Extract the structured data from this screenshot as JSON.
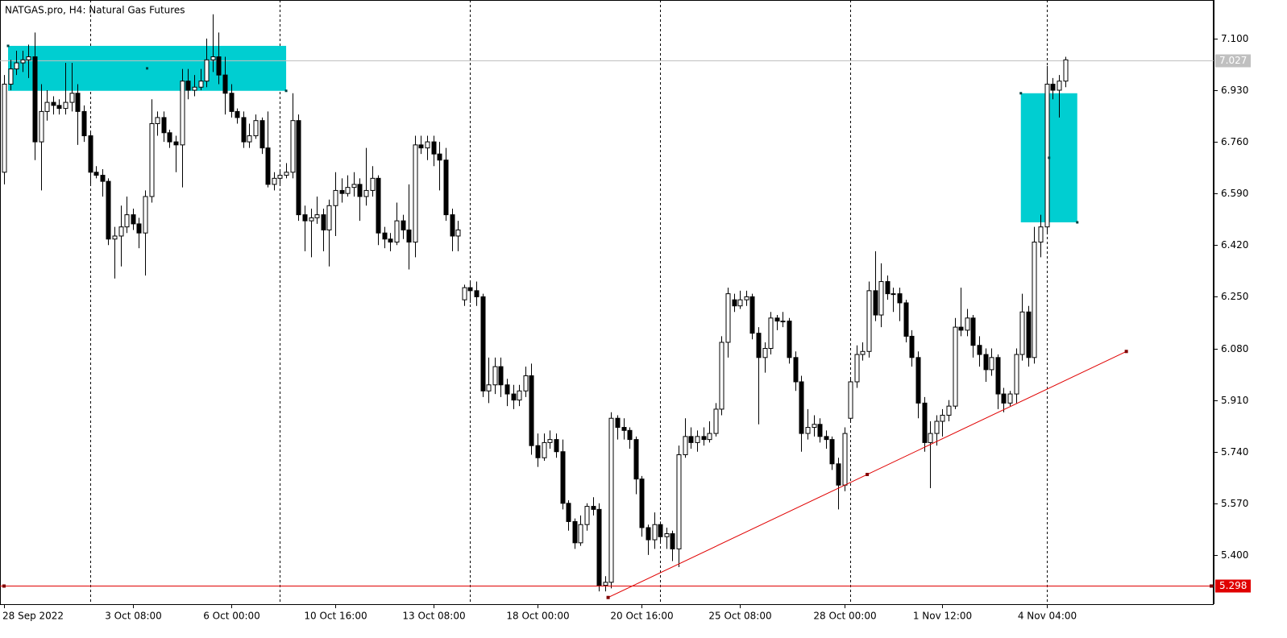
{
  "chart_data": {
    "type": "candlestick",
    "title": "NATGAS.pro, H4:  Natural Gas Futures",
    "ylim": [
      5.238,
      7.227
    ],
    "yticks": [
      {
        "value": 7.1,
        "label": "7.100"
      },
      {
        "value": 6.93,
        "label": "6.930"
      },
      {
        "value": 6.76,
        "label": "6.760"
      },
      {
        "value": 6.59,
        "label": "6.590"
      },
      {
        "value": 6.42,
        "label": "6.420"
      },
      {
        "value": 6.25,
        "label": "6.250"
      },
      {
        "value": 6.08,
        "label": "6.080"
      },
      {
        "value": 5.91,
        "label": "5.910"
      },
      {
        "value": 5.74,
        "label": "5.740"
      },
      {
        "value": 5.57,
        "label": "5.570"
      },
      {
        "value": 5.4,
        "label": "5.400"
      }
    ],
    "categories": [
      "28 Sep 2022",
      null,
      null,
      null,
      null,
      null,
      null,
      null,
      null,
      null,
      null,
      null,
      null,
      null,
      null,
      null,
      null,
      null,
      null,
      null,
      null,
      "3 Oct 08:00",
      null,
      null,
      null,
      null,
      null,
      null,
      null,
      null,
      null,
      null,
      null,
      null,
      null,
      null,
      null,
      "6 Oct 00:00",
      null,
      null,
      null,
      null,
      null,
      null,
      null,
      null,
      null,
      null,
      null,
      null,
      null,
      null,
      null,
      null,
      "10 Oct 16:00",
      null,
      null,
      null,
      null,
      null,
      null,
      null,
      null,
      null,
      null,
      null,
      null,
      null,
      null,
      null,
      "13 Oct 08:00",
      null,
      null,
      null,
      null,
      null,
      null,
      null,
      null,
      null,
      null,
      null,
      null,
      null,
      null,
      null,
      null,
      "18 Oct 00:00",
      null,
      null,
      null,
      null,
      null,
      null,
      null,
      null,
      null,
      null,
      null,
      null,
      null,
      null,
      null,
      null,
      "20 Oct 16:00",
      null,
      null,
      null,
      null,
      null,
      null,
      null,
      null,
      null,
      null,
      null,
      null,
      null,
      null,
      null,
      "25 Oct 08:00",
      null,
      null,
      null,
      null,
      null,
      null,
      null,
      null,
      null,
      null,
      null,
      null,
      null,
      null,
      null,
      null,
      "28 Oct 00:00",
      null,
      null,
      null,
      null,
      null,
      null,
      null,
      null,
      null,
      null,
      null,
      null,
      null,
      null,
      null,
      "1 Nov 12:00",
      null,
      null,
      null,
      null,
      null,
      null,
      null,
      null,
      null,
      null,
      null,
      null,
      null,
      null,
      null,
      null,
      "4 Nov 04:00",
      null,
      null,
      null
    ],
    "candles": [
      [
        6.66,
        6.98,
        6.62,
        6.95
      ],
      [
        6.95,
        7.03,
        6.93,
        7.0
      ],
      [
        7.0,
        7.06,
        6.98,
        7.02
      ],
      [
        7.02,
        7.06,
        6.99,
        7.03
      ],
      [
        7.03,
        7.08,
        6.97,
        7.04
      ],
      [
        7.04,
        7.12,
        6.7,
        6.76
      ],
      [
        6.76,
        6.95,
        6.6,
        6.86
      ],
      [
        6.86,
        6.93,
        6.83,
        6.89
      ],
      [
        6.89,
        6.91,
        6.85,
        6.88
      ],
      [
        6.88,
        6.9,
        6.85,
        6.87
      ],
      [
        6.87,
        7.02,
        6.85,
        6.89
      ],
      [
        6.89,
        7.02,
        6.86,
        6.92
      ],
      [
        6.92,
        6.95,
        6.75,
        6.86
      ],
      [
        6.86,
        6.88,
        6.76,
        6.78
      ],
      [
        6.78,
        6.79,
        6.62,
        6.66
      ],
      [
        6.66,
        6.68,
        6.64,
        6.65
      ],
      [
        6.65,
        6.67,
        6.58,
        6.63
      ],
      [
        6.63,
        6.64,
        6.42,
        6.44
      ],
      [
        6.44,
        6.48,
        6.31,
        6.45
      ],
      [
        6.45,
        6.55,
        6.35,
        6.48
      ],
      [
        6.48,
        6.58,
        6.46,
        6.52
      ],
      [
        6.52,
        6.54,
        6.47,
        6.49
      ],
      [
        6.49,
        6.51,
        6.41,
        6.46
      ],
      [
        6.46,
        6.6,
        6.32,
        6.58
      ],
      [
        6.58,
        6.9,
        6.56,
        6.82
      ],
      [
        6.82,
        6.86,
        6.78,
        6.84
      ],
      [
        6.84,
        6.86,
        6.76,
        6.79
      ],
      [
        6.79,
        6.8,
        6.74,
        6.76
      ],
      [
        6.76,
        6.78,
        6.66,
        6.75
      ],
      [
        6.75,
        7.0,
        6.61,
        6.96
      ],
      [
        6.96,
        7.0,
        6.9,
        6.93
      ],
      [
        6.93,
        6.98,
        6.91,
        6.94
      ],
      [
        6.94,
        7.0,
        6.93,
        6.96
      ],
      [
        6.96,
        7.1,
        6.94,
        7.03
      ],
      [
        7.03,
        7.18,
        6.99,
        7.04
      ],
      [
        7.04,
        7.12,
        6.95,
        6.98
      ],
      [
        6.98,
        7.04,
        6.85,
        6.92
      ],
      [
        6.92,
        6.95,
        6.84,
        6.86
      ],
      [
        6.86,
        6.87,
        6.82,
        6.84
      ],
      [
        6.84,
        6.86,
        6.74,
        6.76
      ],
      [
        6.76,
        6.82,
        6.74,
        6.78
      ],
      [
        6.78,
        6.85,
        6.77,
        6.83
      ],
      [
        6.83,
        6.84,
        6.72,
        6.74
      ],
      [
        6.74,
        6.86,
        6.61,
        6.62
      ],
      [
        6.62,
        6.66,
        6.6,
        6.64
      ],
      [
        6.64,
        6.67,
        6.62,
        6.65
      ],
      [
        6.65,
        6.69,
        6.64,
        6.66
      ],
      [
        6.66,
        6.92,
        6.64,
        6.83
      ],
      [
        6.83,
        6.85,
        6.5,
        6.52
      ],
      [
        6.52,
        6.55,
        6.4,
        6.5
      ],
      [
        6.5,
        6.54,
        6.38,
        6.51
      ],
      [
        6.51,
        6.58,
        6.49,
        6.52
      ],
      [
        6.52,
        6.54,
        6.4,
        6.47
      ],
      [
        6.47,
        6.57,
        6.35,
        6.55
      ],
      [
        6.55,
        6.66,
        6.45,
        6.6
      ],
      [
        6.6,
        6.64,
        6.56,
        6.59
      ],
      [
        6.59,
        6.65,
        6.58,
        6.61
      ],
      [
        6.61,
        6.66,
        6.58,
        6.62
      ],
      [
        6.62,
        6.64,
        6.5,
        6.58
      ],
      [
        6.58,
        6.74,
        6.55,
        6.6
      ],
      [
        6.6,
        6.68,
        6.58,
        6.64
      ],
      [
        6.64,
        6.65,
        6.42,
        6.46
      ],
      [
        6.46,
        6.48,
        6.41,
        6.44
      ],
      [
        6.44,
        6.46,
        6.4,
        6.43
      ],
      [
        6.43,
        6.56,
        6.42,
        6.5
      ],
      [
        6.5,
        6.52,
        6.44,
        6.47
      ],
      [
        6.47,
        6.62,
        6.34,
        6.43
      ],
      [
        6.43,
        6.78,
        6.38,
        6.75
      ],
      [
        6.75,
        6.78,
        6.72,
        6.74
      ],
      [
        6.74,
        6.78,
        6.7,
        6.76
      ],
      [
        6.76,
        6.78,
        6.68,
        6.72
      ],
      [
        6.72,
        6.76,
        6.6,
        6.7
      ],
      [
        6.7,
        6.74,
        6.5,
        6.52
      ],
      [
        6.52,
        6.54,
        6.4,
        6.45
      ],
      [
        6.45,
        6.5,
        6.4,
        6.47
      ],
      [
        6.24,
        6.29,
        6.22,
        6.28
      ],
      [
        6.28,
        6.3,
        6.23,
        6.27
      ],
      [
        6.27,
        6.3,
        6.22,
        6.25
      ],
      [
        6.25,
        6.26,
        5.92,
        5.94
      ],
      [
        5.94,
        6.05,
        5.9,
        5.96
      ],
      [
        5.96,
        6.05,
        5.93,
        6.02
      ],
      [
        6.02,
        6.05,
        5.92,
        5.96
      ],
      [
        5.96,
        5.98,
        5.89,
        5.93
      ],
      [
        5.93,
        5.96,
        5.88,
        5.91
      ],
      [
        5.91,
        5.96,
        5.89,
        5.94
      ],
      [
        5.94,
        6.02,
        5.92,
        5.99
      ],
      [
        5.99,
        6.03,
        5.73,
        5.76
      ],
      [
        5.76,
        5.8,
        5.69,
        5.72
      ],
      [
        5.72,
        5.8,
        5.71,
        5.77
      ],
      [
        5.77,
        5.81,
        5.75,
        5.78
      ],
      [
        5.78,
        5.8,
        5.72,
        5.74
      ],
      [
        5.74,
        5.78,
        5.55,
        5.57
      ],
      [
        5.57,
        5.58,
        5.48,
        5.51
      ],
      [
        5.51,
        5.52,
        5.42,
        5.44
      ],
      [
        5.44,
        5.53,
        5.43,
        5.5
      ],
      [
        5.5,
        5.57,
        5.48,
        5.56
      ],
      [
        5.56,
        5.59,
        5.53,
        5.55
      ],
      [
        5.55,
        5.57,
        5.28,
        5.3
      ],
      [
        5.3,
        5.33,
        5.28,
        5.31
      ],
      [
        5.31,
        5.87,
        5.29,
        5.85
      ],
      [
        5.85,
        5.86,
        5.78,
        5.82
      ],
      [
        5.82,
        5.85,
        5.78,
        5.81
      ],
      [
        5.81,
        5.82,
        5.75,
        5.78
      ],
      [
        5.78,
        5.79,
        5.6,
        5.65
      ],
      [
        5.65,
        5.66,
        5.46,
        5.49
      ],
      [
        5.49,
        5.5,
        5.4,
        5.45
      ],
      [
        5.45,
        5.54,
        5.42,
        5.5
      ],
      [
        5.5,
        5.51,
        5.44,
        5.46
      ],
      [
        5.46,
        5.49,
        5.42,
        5.47
      ],
      [
        5.47,
        5.48,
        5.38,
        5.42
      ],
      [
        5.42,
        5.76,
        5.36,
        5.73
      ],
      [
        5.73,
        5.85,
        5.72,
        5.79
      ],
      [
        5.79,
        5.82,
        5.75,
        5.77
      ],
      [
        5.77,
        5.81,
        5.74,
        5.79
      ],
      [
        5.79,
        5.82,
        5.76,
        5.78
      ],
      [
        5.78,
        5.84,
        5.77,
        5.8
      ],
      [
        5.8,
        5.9,
        5.79,
        5.88
      ],
      [
        5.88,
        6.12,
        5.86,
        6.1
      ],
      [
        6.1,
        6.28,
        6.05,
        6.26
      ],
      [
        6.24,
        6.26,
        6.2,
        6.22
      ],
      [
        6.22,
        6.27,
        6.21,
        6.24
      ],
      [
        6.24,
        6.27,
        6.22,
        6.25
      ],
      [
        6.25,
        6.26,
        6.11,
        6.13
      ],
      [
        6.13,
        6.15,
        5.83,
        6.05
      ],
      [
        6.05,
        6.1,
        6.0,
        6.08
      ],
      [
        6.08,
        6.2,
        6.06,
        6.18
      ],
      [
        6.18,
        6.19,
        6.14,
        6.17
      ],
      [
        6.17,
        6.2,
        6.15,
        6.17
      ],
      [
        6.17,
        6.18,
        6.03,
        6.05
      ],
      [
        6.05,
        6.07,
        5.94,
        5.97
      ],
      [
        5.97,
        5.99,
        5.74,
        5.8
      ],
      [
        5.8,
        5.88,
        5.78,
        5.82
      ],
      [
        5.82,
        5.86,
        5.79,
        5.83
      ],
      [
        5.83,
        5.85,
        5.77,
        5.79
      ],
      [
        5.79,
        5.81,
        5.75,
        5.78
      ],
      [
        5.78,
        5.79,
        5.68,
        5.7
      ],
      [
        5.7,
        5.72,
        5.55,
        5.63
      ],
      [
        5.63,
        5.82,
        5.61,
        5.8
      ],
      [
        5.85,
        5.98,
        5.84,
        5.97
      ],
      [
        5.97,
        6.09,
        5.95,
        6.06
      ],
      [
        6.06,
        6.1,
        6.04,
        6.07
      ],
      [
        6.07,
        6.3,
        6.05,
        6.27
      ],
      [
        6.27,
        6.4,
        6.17,
        6.19
      ],
      [
        6.19,
        6.36,
        6.15,
        6.3
      ],
      [
        6.3,
        6.32,
        6.24,
        6.26
      ],
      [
        6.26,
        6.28,
        6.2,
        6.26
      ],
      [
        6.26,
        6.28,
        6.17,
        6.23
      ],
      [
        6.23,
        6.24,
        6.1,
        6.12
      ],
      [
        6.12,
        6.14,
        6.02,
        6.05
      ],
      [
        6.05,
        6.07,
        5.85,
        5.9
      ],
      [
        5.9,
        5.92,
        5.74,
        5.77
      ],
      [
        5.77,
        5.84,
        5.62,
        5.8
      ],
      [
        5.8,
        5.86,
        5.76,
        5.84
      ],
      [
        5.84,
        5.88,
        5.79,
        5.86
      ],
      [
        5.86,
        5.91,
        5.84,
        5.89
      ],
      [
        5.89,
        6.18,
        5.88,
        6.15
      ],
      [
        6.15,
        6.28,
        6.12,
        6.14
      ],
      [
        6.14,
        6.21,
        6.12,
        6.18
      ],
      [
        6.18,
        6.19,
        6.05,
        6.09
      ],
      [
        6.09,
        6.12,
        6.02,
        6.06
      ],
      [
        6.06,
        6.08,
        5.97,
        6.01
      ],
      [
        6.01,
        6.08,
        5.99,
        6.05
      ],
      [
        6.05,
        6.06,
        5.88,
        5.93
      ],
      [
        5.93,
        5.95,
        5.87,
        5.9
      ],
      [
        5.9,
        5.94,
        5.89,
        5.93
      ],
      [
        5.93,
        6.08,
        5.9,
        6.06
      ],
      [
        6.06,
        6.26,
        6.04,
        6.2
      ],
      [
        6.2,
        6.22,
        6.02,
        6.05
      ],
      [
        6.05,
        6.48,
        6.03,
        6.43
      ],
      [
        6.43,
        6.52,
        6.38,
        6.48
      ],
      [
        6.48,
        7.01,
        6.46,
        6.95
      ],
      [
        6.95,
        6.97,
        6.9,
        6.93
      ],
      [
        6.93,
        6.98,
        6.84,
        6.96
      ],
      [
        6.96,
        7.04,
        6.94,
        7.03
      ]
    ],
    "separators": [
      14,
      45,
      76,
      107,
      138,
      170
    ],
    "price_line": {
      "value": 7.027,
      "label": "7.027",
      "color": "#c0c0c0"
    },
    "level_line": {
      "value": 5.298,
      "label": "5.298",
      "color": "#e00000"
    },
    "trendline": {
      "x": [
        98.5,
        183
      ],
      "y": [
        5.26,
        6.07
      ],
      "color": "#e00000"
    },
    "zones": [
      {
        "x": [
          0.66,
          46
        ],
        "y": [
          7.076,
          6.928
        ],
        "color": "#00ced1"
      },
      {
        "x": [
          165.8,
          175
        ],
        "y": [
          6.92,
          6.495
        ],
        "color": "#00ced1"
      }
    ]
  }
}
